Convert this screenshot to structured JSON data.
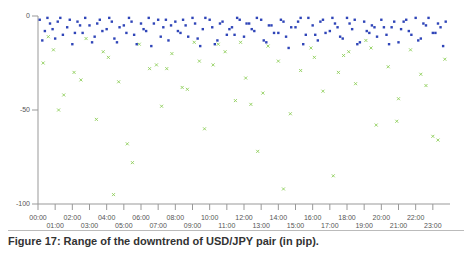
{
  "chart_data": {
    "type": "scatter",
    "title": "Figure 17: Range of the downtrend of USD/JPY pair (in pip).",
    "xlim": [
      0,
      24
    ],
    "xticks": [
      {
        "value": 0,
        "label": "00:00"
      },
      {
        "value": 1,
        "label": "01:00"
      },
      {
        "value": 2,
        "label": "02:00"
      },
      {
        "value": 3,
        "label": "03:00"
      },
      {
        "value": 4,
        "label": "04:00"
      },
      {
        "value": 5,
        "label": "05:00"
      },
      {
        "value": 6,
        "label": "06:00"
      },
      {
        "value": 7,
        "label": "07:00"
      },
      {
        "value": 8,
        "label": "08:00"
      },
      {
        "value": 9,
        "label": "09:00"
      },
      {
        "value": 10,
        "label": "10:00"
      },
      {
        "value": 11,
        "label": "11:00"
      },
      {
        "value": 12,
        "label": "12:00"
      },
      {
        "value": 13,
        "label": "13:00"
      },
      {
        "value": 14,
        "label": "14:00"
      },
      {
        "value": 15,
        "label": "15:00"
      },
      {
        "value": 16,
        "label": "16:00"
      },
      {
        "value": 17,
        "label": "17:00"
      },
      {
        "value": 18,
        "label": "18:00"
      },
      {
        "value": 19,
        "label": "19:00"
      },
      {
        "value": 20,
        "label": "20:00"
      },
      {
        "value": 21,
        "label": "21:00"
      },
      {
        "value": 22,
        "label": "22:00"
      },
      {
        "value": 23,
        "label": "23:00"
      }
    ],
    "ylim": [
      -100,
      0
    ],
    "yticks": [
      0,
      -50,
      -100
    ],
    "grid": false,
    "series": [
      {
        "color": "#8fce5a",
        "marker": "x",
        "x": [
          0.3,
          0.9,
          1.5,
          2.1,
          2.8,
          3.4,
          4.1,
          4.7,
          5.2,
          5.9,
          6.5,
          7.2,
          7.8,
          8.4,
          9.1,
          9.7,
          10.2,
          10.9,
          11.5,
          12.1,
          12.8,
          13.4,
          14.0,
          14.7,
          15.3,
          15.9,
          16.6,
          17.2,
          17.8,
          18.5,
          19.1,
          19.7,
          20.4,
          21.0,
          21.7,
          22.3,
          23.0,
          23.7,
          0.6,
          1.2,
          2.5,
          3.8,
          5.5,
          6.9,
          8.7,
          10.5,
          12.4,
          14.3,
          16.1,
          17.5,
          19.4,
          20.9,
          22.6,
          4.4,
          9.4,
          13.1,
          18.1,
          23.3,
          7.5,
          11.8
        ],
        "values": [
          -25,
          -18,
          -42,
          -30,
          -12,
          -55,
          -22,
          -35,
          -68,
          -15,
          -28,
          -48,
          -20,
          -38,
          -14,
          -60,
          -26,
          -19,
          -45,
          -33,
          -72,
          -16,
          -24,
          -52,
          -29,
          -17,
          -40,
          -85,
          -21,
          -36,
          -13,
          -58,
          -27,
          -44,
          -18,
          -31,
          -64,
          -23,
          -11,
          -50,
          -34,
          -19,
          -78,
          -26,
          -39,
          -15,
          -47,
          -92,
          -22,
          -30,
          -17,
          -56,
          -37,
          -95,
          -24,
          -41,
          -19,
          -66,
          -28,
          -14
        ]
      },
      {
        "color": "#2f45b8",
        "marker": "square",
        "x": [
          0.1,
          0.4,
          0.7,
          1.0,
          1.3,
          1.7,
          2.0,
          2.3,
          2.6,
          3.0,
          3.3,
          3.6,
          4.0,
          4.3,
          4.6,
          5.0,
          5.3,
          5.6,
          6.0,
          6.3,
          6.6,
          7.0,
          7.3,
          7.6,
          8.0,
          8.3,
          8.6,
          9.0,
          9.3,
          9.6,
          10.0,
          10.3,
          10.6,
          11.0,
          11.3,
          11.6,
          12.0,
          12.3,
          12.6,
          13.0,
          13.3,
          13.6,
          14.0,
          14.3,
          14.6,
          15.0,
          15.3,
          15.6,
          16.0,
          16.3,
          16.6,
          17.0,
          17.3,
          17.6,
          18.0,
          18.3,
          18.6,
          19.0,
          19.3,
          19.6,
          20.0,
          20.3,
          20.6,
          21.0,
          21.3,
          21.6,
          22.0,
          22.3,
          22.6,
          23.0,
          23.3,
          23.6,
          0.25,
          0.55,
          0.85,
          1.15,
          1.45,
          1.85,
          2.15,
          2.45,
          2.75,
          3.15,
          3.45,
          3.75,
          4.15,
          4.45,
          4.75,
          5.15,
          5.45,
          5.75,
          6.15,
          6.45,
          6.75,
          7.15,
          7.45,
          7.75,
          8.15,
          8.45,
          8.75,
          9.15,
          9.45,
          9.75,
          10.15,
          10.45,
          10.75,
          11.15,
          11.45,
          11.75,
          12.15,
          12.45,
          12.75,
          13.15,
          13.45,
          13.75,
          14.15,
          14.45,
          14.75,
          15.15,
          15.45,
          15.75,
          16.15,
          16.45,
          16.75,
          17.15,
          17.45,
          17.75,
          18.15,
          18.45,
          18.75,
          19.15,
          19.45,
          19.75,
          20.15,
          20.45,
          20.75,
          21.15,
          21.45,
          21.75,
          22.15,
          22.45,
          22.75,
          23.15,
          23.45,
          23.75
        ],
        "values": [
          -2,
          -8,
          -4,
          -12,
          -1,
          -6,
          -15,
          -3,
          -9,
          -5,
          -11,
          -2,
          -7,
          -3,
          -14,
          -5,
          -1,
          -10,
          -4,
          -8,
          -16,
          -2,
          -6,
          -13,
          -3,
          -9,
          -5,
          -1,
          -12,
          -7,
          -2,
          -15,
          -4,
          -10,
          -6,
          -1,
          -11,
          -4,
          -8,
          -2,
          -14,
          -5,
          -9,
          -3,
          -17,
          -6,
          -1,
          -10,
          -5,
          -13,
          -2,
          -8,
          -4,
          -11,
          -1,
          -7,
          -15,
          -3,
          -9,
          -6,
          -2,
          -10,
          -6,
          -14,
          -3,
          -8,
          -1,
          -12,
          -5,
          -9,
          -4,
          -16,
          -13,
          -1,
          -7,
          -3,
          -10,
          -2,
          -9,
          -5,
          -1,
          -14,
          -4,
          -8,
          -1,
          -12,
          -6,
          -9,
          -3,
          -15,
          -7,
          -1,
          -4,
          -11,
          -2,
          -5,
          -8,
          -2,
          -11,
          -4,
          -16,
          -1,
          -6,
          -13,
          -3,
          -7,
          -10,
          -2,
          -4,
          -7,
          -1,
          -13,
          -5,
          -9,
          -2,
          -11,
          -6,
          -3,
          -15,
          -1,
          -10,
          -3,
          -9,
          -1,
          -6,
          -12,
          -4,
          -2,
          -14,
          -8,
          -5,
          -11,
          -6,
          -15,
          -3,
          -7,
          -2,
          -10,
          -13,
          -4,
          -1,
          -9,
          -6,
          -3
        ]
      }
    ]
  }
}
